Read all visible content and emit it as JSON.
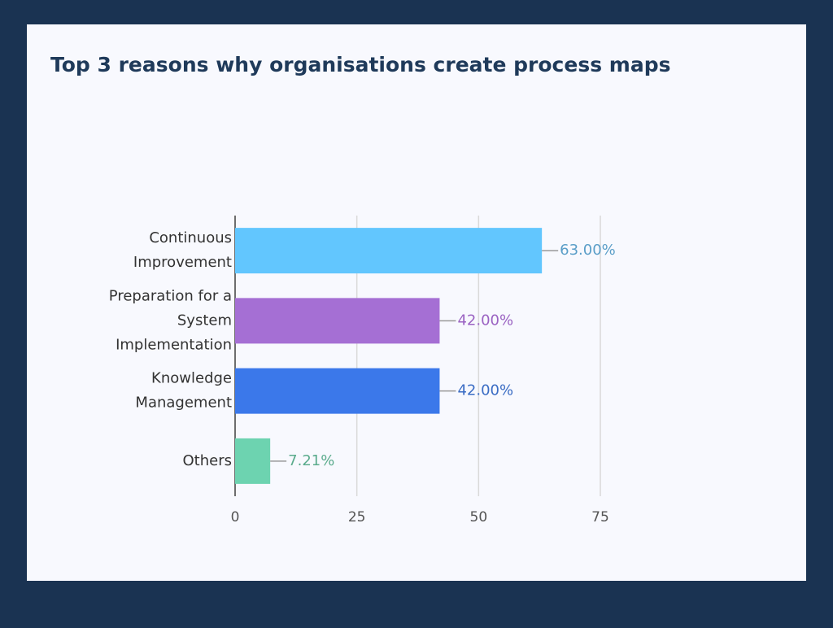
{
  "chart_data": {
    "type": "bar",
    "orientation": "horizontal",
    "title": "Top 3 reasons why organisations create process maps",
    "categories": [
      [
        "Continuous",
        "Improvement"
      ],
      [
        "Preparation for a",
        "System",
        "Implementation"
      ],
      [
        "Knowledge",
        "Management"
      ],
      [
        "Others"
      ]
    ],
    "values": [
      63,
      42,
      42,
      7.21
    ],
    "value_labels": [
      "63.00%",
      "42.00%",
      "42.00%",
      "7.21%"
    ],
    "colors": [
      "#62c6fe",
      "#a56fd4",
      "#3b78ea",
      "#6dd3b0"
    ],
    "label_colors": [
      "#5a9ec8",
      "#9a62c2",
      "#3a6cc4",
      "#5aab8c"
    ],
    "xlim": [
      0,
      75
    ],
    "xticks": [
      0,
      25,
      50,
      75
    ],
    "grid": true
  }
}
